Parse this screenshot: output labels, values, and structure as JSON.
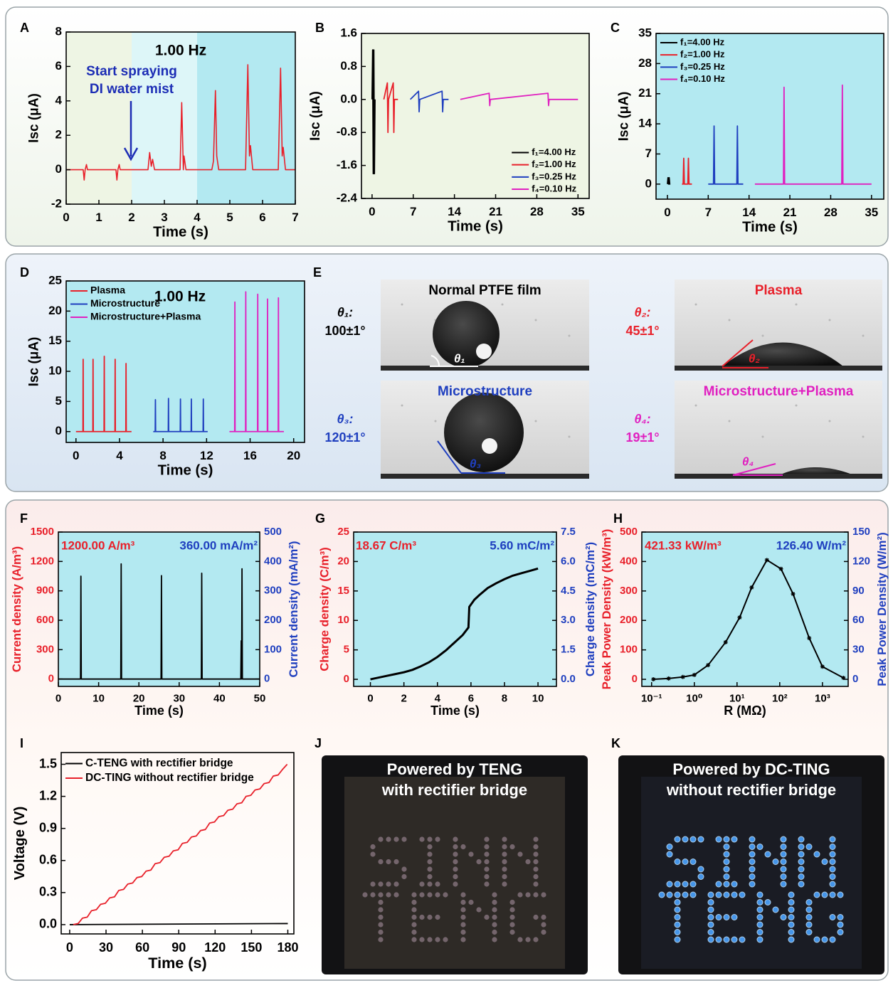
{
  "chart_data": [
    {
      "panel": "A",
      "type": "line",
      "xlabel": "Time (s)",
      "ylabel": "Isc (μA)",
      "xlim": [
        0,
        7
      ],
      "ylim": [
        -2,
        8
      ],
      "xticks": [
        0,
        1,
        2,
        3,
        4,
        5,
        6,
        7
      ],
      "yticks": [
        -2,
        0,
        2,
        4,
        6,
        8
      ],
      "regions": [
        {
          "from": 0,
          "to": 2,
          "color": "#eef5e4"
        },
        {
          "from": 2,
          "to": 4,
          "color": "#ddf6f8"
        },
        {
          "from": 4,
          "to": 7,
          "color": "#b3e9f1"
        }
      ],
      "annotations": [
        {
          "text": "1.00 Hz",
          "color": "#000000"
        },
        {
          "text": "Start spraying",
          "color": "#1c2db5"
        },
        {
          "text": "DI water mist",
          "color": "#1c2db5"
        }
      ],
      "series": [
        {
          "color": "#e8202a",
          "x": [
            0,
            0.52,
            0.55,
            0.58,
            0.62,
            0.65,
            1.52,
            1.55,
            1.58,
            1.62,
            1.65,
            2.5,
            2.55,
            2.6,
            2.64,
            2.7,
            3.48,
            3.53,
            3.58,
            3.6,
            3.66,
            4.45,
            4.5,
            4.56,
            4.6,
            4.66,
            5.48,
            5.55,
            5.6,
            5.63,
            5.7,
            6.48,
            6.55,
            6.6,
            6.63,
            6.7,
            7
          ],
          "values": [
            0,
            0,
            -0.6,
            0,
            0.3,
            0,
            0,
            -0.6,
            0,
            0.3,
            0,
            0,
            1,
            0.2,
            0.6,
            0,
            0,
            3.9,
            0,
            0.8,
            0,
            0,
            0.5,
            4.6,
            0.8,
            0,
            0,
            6.1,
            0.8,
            1.4,
            0,
            0,
            5.9,
            0.8,
            1.3,
            0,
            0
          ]
        }
      ]
    },
    {
      "panel": "B",
      "type": "line",
      "xlabel": "Time (s)",
      "ylabel": "Isc (μA)",
      "background": "#eef5e4",
      "legend": "lower right",
      "xlim": [
        -1.8,
        36.9
      ],
      "ylim": [
        -2.4,
        1.6
      ],
      "xticks": [
        0,
        7,
        14,
        21,
        28,
        35
      ],
      "yticks": [
        -2.4,
        -1.6,
        -0.8,
        {
          "value": 0,
          "label": "0.0"
        },
        0.8,
        1.6
      ],
      "series": [
        {
          "name": "f₁=4.00 Hz",
          "color": "#000000",
          "x": [
            0,
            0.1,
            0.2,
            0.3,
            0.4,
            0.5
          ],
          "values": [
            0,
            1.2,
            -1.8,
            1.2,
            -1.8,
            0
          ]
        },
        {
          "name": "f₂=1.00 Hz",
          "color": "#e8202a",
          "x": [
            2,
            2.6,
            2.7,
            2.8,
            3.6,
            3.7,
            3.8,
            4.4
          ],
          "values": [
            0,
            0.4,
            -0.8,
            0,
            0.4,
            -0.8,
            0,
            0
          ]
        },
        {
          "name": "f₃=0.25 Hz",
          "color": "#1f3fbf",
          "x": [
            6.5,
            7.9,
            8,
            8.1,
            11.9,
            12,
            12.1,
            13
          ],
          "values": [
            0,
            0.2,
            -0.3,
            0,
            0.2,
            -0.3,
            0,
            0
          ]
        },
        {
          "name": "f₄=0.10 Hz",
          "color": "#e020c0",
          "x": [
            15,
            19.9,
            20,
            20.1,
            29.9,
            30,
            30.1,
            35
          ],
          "values": [
            0,
            0.15,
            -0.15,
            0,
            0.15,
            -0.15,
            0,
            0
          ]
        }
      ]
    },
    {
      "panel": "C",
      "type": "line",
      "xlabel": "Time (s)",
      "ylabel": "Isc (μA)",
      "background": "#b3e9f1",
      "legend": "upper left",
      "xlim": [
        -1.95,
        37.1
      ],
      "ylim": [
        -3.5,
        35
      ],
      "xticks": [
        0,
        7,
        14,
        21,
        28,
        35
      ],
      "yticks": [
        0,
        7,
        14,
        21,
        28,
        35
      ],
      "series": [
        {
          "name": "f₁=4.00 Hz",
          "color": "#000000",
          "x": [
            0,
            0.1,
            0.2,
            0.3,
            0.4,
            0.5
          ],
          "values": [
            0,
            1.5,
            0,
            1.5,
            0,
            0
          ]
        },
        {
          "name": "f₂=1.00 Hz",
          "color": "#e8202a",
          "x": [
            2.5,
            2.7,
            2.8,
            2.9,
            3.5,
            3.6,
            3.7,
            4.2
          ],
          "values": [
            0,
            0,
            6,
            0,
            0,
            6,
            0,
            0
          ]
        },
        {
          "name": "f₃=0.25 Hz",
          "color": "#1f3fbf",
          "x": [
            7,
            7.9,
            8,
            8.1,
            11.9,
            12,
            12.1,
            13
          ],
          "values": [
            0,
            0,
            13.5,
            0,
            0,
            13.5,
            0,
            0
          ]
        },
        {
          "name": "f₄=0.10 Hz",
          "color": "#e020c0",
          "x": [
            15,
            19.9,
            20,
            20.1,
            29.9,
            30,
            30.1,
            35
          ],
          "values": [
            0,
            0,
            22.5,
            0,
            0,
            23,
            0,
            0
          ]
        }
      ]
    },
    {
      "panel": "D",
      "type": "line",
      "xlabel": "Time (s)",
      "ylabel": "Isc (μA)",
      "background": "#b3e9f1",
      "legend": "upper left",
      "xlim": [
        -0.9,
        21
      ],
      "ylim": [
        -1.8,
        25
      ],
      "xticks": [
        0,
        4,
        8,
        12,
        16,
        20
      ],
      "yticks": [
        0,
        5,
        10,
        15,
        20,
        25
      ],
      "annotations": [
        {
          "text": "1.00 Hz",
          "color": "#000000"
        }
      ],
      "series": [
        {
          "name": "Plasma",
          "color": "#e8202a",
          "x": [
            0,
            0.64,
            0.66,
            0.68,
            1.55,
            1.57,
            1.59,
            2.58,
            2.6,
            2.62,
            3.58,
            3.6,
            3.62,
            4.58,
            4.6,
            4.62,
            5.1
          ],
          "values": [
            0,
            0,
            12,
            0,
            0,
            12,
            0,
            0,
            12.5,
            0,
            0,
            12,
            0,
            0,
            11.3,
            0,
            0
          ]
        },
        {
          "name": "Microstructure",
          "color": "#1f3fbf",
          "x": [
            7.1,
            7.28,
            7.3,
            7.32,
            8.48,
            8.5,
            8.52,
            9.58,
            9.6,
            9.62,
            10.58,
            10.6,
            10.62,
            11.68,
            11.7,
            11.72,
            12.1
          ],
          "values": [
            0,
            0,
            5.3,
            0,
            0,
            5.5,
            0,
            0,
            5.4,
            0,
            0,
            5.4,
            0,
            0,
            5.4,
            0,
            0
          ]
        },
        {
          "name": "Microstructure+Plasma",
          "color": "#e020c0",
          "x": [
            14.1,
            14.58,
            14.6,
            14.62,
            15.58,
            15.6,
            15.62,
            16.68,
            16.7,
            16.72,
            17.58,
            17.6,
            17.62,
            18.58,
            18.6,
            18.62,
            19.1
          ],
          "values": [
            0,
            0,
            21.5,
            0,
            0,
            23.2,
            0,
            0,
            22.8,
            0,
            0,
            22,
            0,
            0,
            22.2,
            0,
            0
          ]
        }
      ]
    },
    {
      "panel": "F",
      "type": "line",
      "xlabel": "Time (s)",
      "ylabel": "Current density (A/m³)",
      "y2label": "Current density (mA/m²)",
      "ycolor": "#e8202a",
      "y2color": "#1f3fbf",
      "background": "#b3e9f1",
      "xlim": [
        0,
        50
      ],
      "ylim": [
        -75,
        1500
      ],
      "y2lim": [
        -25,
        500
      ],
      "xticks": [
        0,
        10,
        20,
        30,
        40,
        50
      ],
      "yticks": [
        0,
        300,
        600,
        900,
        1200,
        1500
      ],
      "y2ticks": [
        0,
        100,
        200,
        300,
        400,
        500
      ],
      "annotations": [
        {
          "text": "1200.00 A/m³",
          "color": "#e8202a"
        },
        {
          "text": "360.00 mA/m²",
          "color": "#1f3fbf"
        }
      ],
      "series": [
        {
          "color": "#000000",
          "x": [
            0,
            5.5,
            5.6,
            5.7,
            15.5,
            15.6,
            15.7,
            25.5,
            25.6,
            25.7,
            35.5,
            35.6,
            35.7,
            45.3,
            45.4,
            45.5,
            45.6,
            45.7,
            50
          ],
          "values": [
            0,
            0,
            1050,
            0,
            0,
            1175,
            0,
            0,
            1055,
            0,
            0,
            1080,
            0,
            0,
            390,
            0,
            1125,
            0,
            0
          ]
        }
      ]
    },
    {
      "panel": "G",
      "type": "line",
      "xlabel": "Time (s)",
      "ylabel": "Charge density (C/m³)",
      "y2label": "Charge density (mC/m²)",
      "ycolor": "#e8202a",
      "y2color": "#1f3fbf",
      "background": "#b3e9f1",
      "xlim": [
        -1,
        11.1
      ],
      "ylim": [
        -1.2,
        25
      ],
      "y2lim": [
        -0.36,
        7.5
      ],
      "xticks": [
        0,
        2,
        4,
        6,
        8,
        10
      ],
      "yticks": [
        0,
        5,
        10,
        15,
        20,
        25
      ],
      "y2ticks": [
        {
          "value": 0,
          "label": "0.0"
        },
        1.5,
        {
          "value": 3,
          "label": "3.0"
        },
        4.5,
        {
          "value": 6,
          "label": "6.0"
        },
        7.5
      ],
      "annotations": [
        {
          "text": "18.67 C/m³",
          "color": "#e8202a"
        },
        {
          "text": "5.60 mC/m²",
          "color": "#1f3fbf"
        }
      ],
      "series": [
        {
          "color": "#000000",
          "x": [
            0,
            0.5,
            1,
            1.5,
            2,
            2.5,
            3,
            3.5,
            4,
            4.5,
            5,
            5.5,
            5.85,
            5.9,
            6.2,
            6.5,
            7,
            7.5,
            8,
            8.5,
            9,
            9.5,
            10
          ],
          "values": [
            0,
            0.3,
            0.6,
            0.9,
            1.2,
            1.6,
            2.2,
            2.9,
            3.8,
            4.9,
            6.2,
            7.5,
            8.8,
            12.3,
            13.5,
            14.3,
            15.5,
            16.3,
            17,
            17.6,
            18,
            18.4,
            18.8
          ]
        }
      ]
    },
    {
      "panel": "H",
      "type": "line",
      "xlabel": "R (MΩ)",
      "ylabel": "Peak Power Density (kW/m³)",
      "y2label": "Peak Power Density (W/m²)",
      "ycolor": "#e8202a",
      "y2color": "#1f3fbf",
      "background": "#b3e9f1",
      "xlog": true,
      "marker": "star",
      "xlim": [
        0.059,
        4000
      ],
      "ylim": [
        -24,
        500
      ],
      "y2lim": [
        -7.2,
        150
      ],
      "xticks": [
        {
          "value": 0.1,
          "label": "10⁻¹"
        },
        {
          "value": 1,
          "label": "10⁰"
        },
        {
          "value": 10,
          "label": "10¹"
        },
        {
          "value": 100,
          "label": "10²"
        },
        {
          "value": 1000,
          "label": "10³"
        }
      ],
      "yticks": [
        0,
        100,
        200,
        300,
        400,
        500
      ],
      "y2ticks": [
        0,
        30,
        60,
        90,
        120,
        150
      ],
      "annotations": [
        {
          "text": "421.33 kW/m³",
          "color": "#e8202a"
        },
        {
          "text": "126.40 W/m²",
          "color": "#1f3fbf"
        }
      ],
      "series": [
        {
          "color": "#000000",
          "x": [
            0.11,
            0.25,
            0.54,
            1,
            2.1,
            5.4,
            11.5,
            22,
            50,
            107,
            205,
            490,
            1000,
            3100
          ],
          "values": [
            0,
            3,
            8,
            15,
            48,
            126,
            210,
            312,
            405,
            375,
            290,
            140,
            43,
            5
          ]
        }
      ]
    },
    {
      "panel": "I",
      "type": "line",
      "xlabel": "Time (s)",
      "ylabel": "Voltage (V)",
      "legend": "upper left",
      "xlim": [
        -7,
        185
      ],
      "ylim": [
        -0.087,
        1.61
      ],
      "xticks": [
        0,
        30,
        60,
        90,
        120,
        150,
        180
      ],
      "yticks": [
        {
          "value": 0,
          "label": "0.0"
        },
        0.3,
        0.6,
        0.9,
        1.2,
        1.5
      ],
      "series": [
        {
          "name": "C-TENG with rectifier bridge",
          "color": "#000000",
          "x": [
            0,
            180
          ],
          "values": [
            0,
            0.01
          ]
        },
        {
          "name": "DC-TING without rectifier bridge",
          "color": "#e8202a",
          "x": [
            3,
            7,
            10.5,
            14.5,
            18,
            22,
            25.5,
            29.5,
            33,
            37,
            40.5,
            44.5,
            48,
            52,
            55.5,
            59.5,
            63,
            67,
            70.5,
            74.5,
            78,
            82,
            85.5,
            89.5,
            93,
            97,
            100.5,
            104.5,
            108,
            112,
            115.5,
            119.5,
            123,
            127,
            130.5,
            134.5,
            138,
            142,
            145.5,
            149.5,
            153,
            157,
            160.5,
            164.5,
            168,
            172,
            175.5,
            179.5
          ],
          "values": [
            0,
            0.01,
            0.06,
            0.07,
            0.13,
            0.14,
            0.19,
            0.2,
            0.25,
            0.26,
            0.32,
            0.33,
            0.38,
            0.39,
            0.44,
            0.45,
            0.5,
            0.51,
            0.57,
            0.58,
            0.63,
            0.64,
            0.69,
            0.7,
            0.76,
            0.77,
            0.82,
            0.83,
            0.88,
            0.89,
            0.95,
            0.96,
            1.01,
            1.02,
            1.07,
            1.08,
            1.13,
            1.14,
            1.2,
            1.21,
            1.26,
            1.27,
            1.32,
            1.33,
            1.39,
            1.4,
            1.45,
            1.5
          ]
        }
      ]
    }
  ],
  "photos": [
    {
      "panel": "E",
      "items": [
        {
          "title": "Normal PTFE film",
          "color": "#000000",
          "symbol": "θ₁:",
          "angle": "100±1°",
          "label": "θ₁"
        },
        {
          "title": "Plasma",
          "color": "#e8202a",
          "symbol": "θ₂:",
          "angle": "45±1°",
          "label": "θ₂"
        },
        {
          "title": "Microstructure",
          "color": "#1f3fbf",
          "symbol": "θ₃:",
          "angle": "120±1°",
          "label": "θ₃"
        },
        {
          "title": "Microstructure+Plasma",
          "color": "#e020c0",
          "symbol": "θ₄:",
          "angle": "19±1°",
          "label": "θ₄"
        }
      ]
    },
    {
      "panel": "J",
      "caption": [
        "Powered by TENG",
        "with rectifier bridge"
      ]
    },
    {
      "panel": "K",
      "caption": [
        "Powered by DC-TING",
        "without rectifier bridge"
      ]
    }
  ]
}
